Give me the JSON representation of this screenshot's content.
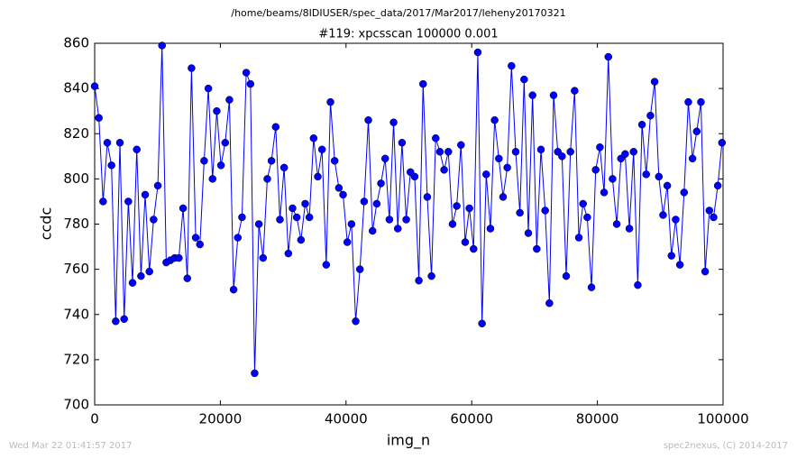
{
  "chart_data": {
    "type": "line",
    "header": "/home/beams/8IDIUSER/spec_data/2017/Mar2017/leheny20170321",
    "title": "#119: xpcsscan 100000 0.001",
    "x_label": "img_n",
    "y_label": "ccdc",
    "footer_left": "Wed Mar 22 01:41:57 2017",
    "footer_right": "spec2nexus, (C) 2014-2017",
    "xlim": [
      0,
      100000
    ],
    "xticks": [
      0,
      20000,
      40000,
      60000,
      80000,
      100000
    ],
    "ylim": [
      700,
      860
    ],
    "yticks": [
      700,
      720,
      740,
      760,
      780,
      800,
      820,
      840,
      860
    ],
    "x": [
      0,
      670,
      1340,
      2010,
      2680,
      3350,
      4020,
      4690,
      5360,
      6030,
      6700,
      7370,
      8040,
      8710,
      9380,
      10050,
      10720,
      11390,
      12060,
      12730,
      13400,
      14070,
      14740,
      15410,
      16080,
      16750,
      17420,
      18090,
      18760,
      19430,
      20100,
      20770,
      21440,
      22110,
      22780,
      23450,
      24120,
      24790,
      25460,
      26130,
      26800,
      27470,
      28140,
      28810,
      29480,
      30150,
      30820,
      31490,
      32160,
      32830,
      33500,
      34170,
      34840,
      35510,
      36180,
      36850,
      37520,
      38190,
      38860,
      39530,
      40200,
      40870,
      41540,
      42210,
      42880,
      43550,
      44220,
      44890,
      45560,
      46230,
      46900,
      47570,
      48240,
      48910,
      49580,
      50250,
      50920,
      51590,
      52260,
      52930,
      53600,
      54270,
      54940,
      55610,
      56280,
      56950,
      57620,
      58290,
      58960,
      59630,
      60300,
      60970,
      61640,
      62310,
      62980,
      63650,
      64320,
      64990,
      65660,
      66330,
      67000,
      67670,
      68340,
      69010,
      69680,
      70350,
      71020,
      71690,
      72360,
      73030,
      73700,
      74370,
      75040,
      75710,
      76380,
      77050,
      77720,
      78390,
      79060,
      79730,
      80400,
      81070,
      81740,
      82410,
      83080,
      83750,
      84420,
      85090,
      85760,
      86430,
      87100,
      87770,
      88440,
      89110,
      89780,
      90450,
      91120,
      91790,
      92460,
      93130,
      93800,
      94470,
      95140,
      95810,
      96480,
      97150,
      97820,
      98490,
      99160,
      99830
    ],
    "series": [
      {
        "color": "#0000ff",
        "values": [
          841,
          827,
          790,
          816,
          806,
          737,
          816,
          738,
          790,
          754,
          813,
          757,
          793,
          759,
          782,
          797,
          859,
          763,
          764,
          765,
          765,
          787,
          756,
          849,
          774,
          771,
          808,
          840,
          800,
          830,
          806,
          816,
          835,
          751,
          774,
          783,
          847,
          842,
          714,
          780,
          765,
          800,
          808,
          823,
          782,
          805,
          767,
          787,
          783,
          773,
          789,
          783,
          818,
          801,
          813,
          762,
          834,
          808,
          796,
          793,
          772,
          780,
          737,
          760,
          790,
          826,
          777,
          789,
          798,
          809,
          782,
          825,
          778,
          816,
          782,
          803,
          801,
          755,
          842,
          792,
          757,
          818,
          812,
          804,
          812,
          780,
          788,
          815,
          772,
          787,
          769,
          856,
          736,
          802,
          778,
          826,
          809,
          792,
          805,
          850,
          812,
          785,
          844,
          776,
          837,
          769,
          813,
          786,
          745,
          837,
          812,
          810,
          757,
          812,
          839,
          774,
          789,
          783,
          752,
          804,
          814,
          794,
          854,
          800,
          780,
          809,
          811,
          778,
          812,
          753,
          824,
          802,
          828,
          843,
          801,
          784,
          797,
          766,
          782,
          762,
          794,
          834,
          809,
          821,
          834,
          759,
          786,
          783,
          797,
          816
        ]
      }
    ]
  }
}
